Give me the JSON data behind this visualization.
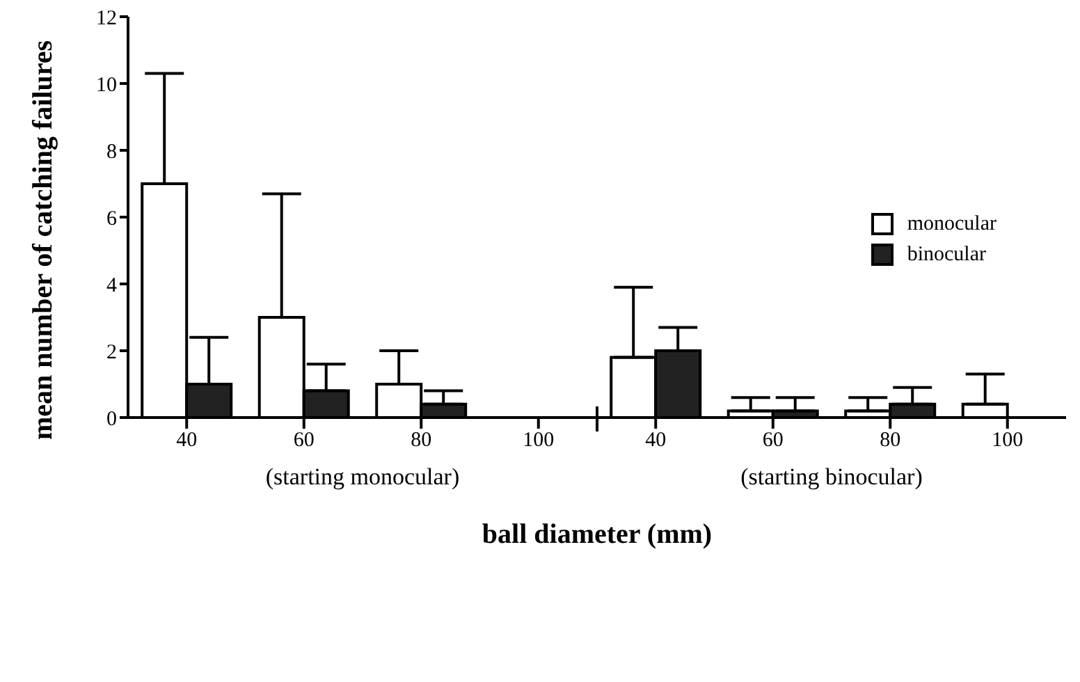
{
  "chart_data": {
    "type": "bar",
    "xlabel": "ball diameter (mm)",
    "ylabel": "mean number of catching failures",
    "categories": [
      "40",
      "60",
      "80",
      "100",
      "40",
      "60",
      "80",
      "100"
    ],
    "series": [
      {
        "name": "monocular",
        "color": "#ffffff",
        "values": [
          7,
          3,
          1,
          0,
          1.8,
          0.2,
          0.2,
          0.4
        ],
        "errors": [
          [
            7,
            10.3
          ],
          [
            3,
            6.7
          ],
          [
            1,
            2
          ],
          null,
          [
            1.8,
            3.9
          ],
          [
            0.2,
            0.6
          ],
          [
            0.2,
            0.6
          ],
          [
            0.4,
            1.3
          ]
        ]
      },
      {
        "name": "binocular",
        "color": "#222222",
        "values": [
          1,
          0.8,
          0.4,
          0,
          2,
          0.2,
          0.4,
          null
        ],
        "errors": [
          [
            1,
            2.4
          ],
          [
            0.8,
            1.6
          ],
          [
            0.4,
            0.8
          ],
          null,
          [
            2,
            2.7
          ],
          [
            0.2,
            0.6
          ],
          [
            0.4,
            0.9
          ],
          null
        ]
      }
    ],
    "ylim": [
      0,
      12
    ],
    "yticks": [
      0,
      2,
      4,
      6,
      8,
      10,
      12
    ],
    "grid": false,
    "legend": "right",
    "annotations": [
      "(starting monocular)",
      "(starting binocular)"
    ]
  }
}
